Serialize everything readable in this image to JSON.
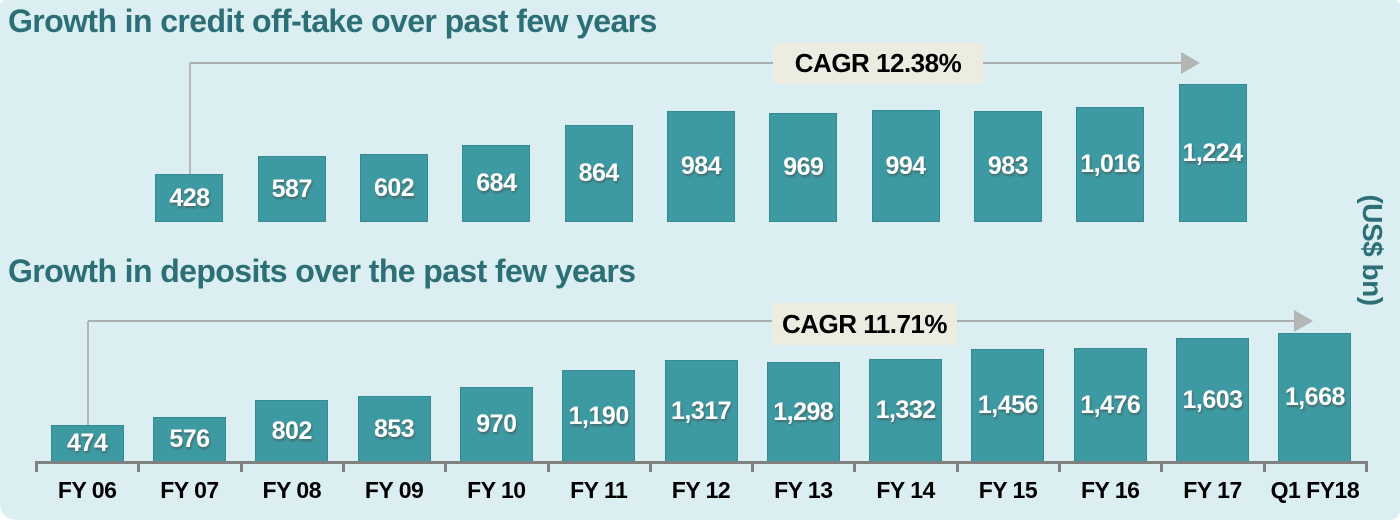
{
  "unit_label": "(US$ bn)",
  "colors": {
    "background": "#dbeef1",
    "bar": "#3e9aa2",
    "heading": "#2c6f77",
    "cagr_box_bg": "#ecede0",
    "annotation_line": "#aab0ae",
    "axis": "#7e817f",
    "bar_value_text": "#ffffff",
    "axis_label_text": "#000000"
  },
  "x_axis": {
    "categories": [
      "FY 06",
      "FY 07",
      "FY 08",
      "FY 09",
      "FY 10",
      "FY 11",
      "FY 12",
      "FY 13",
      "FY 14",
      "FY 15",
      "FY 16",
      "FY 17",
      "Q1 FY18"
    ]
  },
  "chart_data": [
    {
      "type": "bar",
      "title": "Growth in credit off-take over past few years",
      "cagr_label": "CAGR 12.38%",
      "unit": "US$ bn",
      "categories": [
        "FY 07",
        "FY 08",
        "FY 09",
        "FY 10",
        "FY 11",
        "FY 12",
        "FY 13",
        "FY 14",
        "FY 15",
        "FY 16",
        "FY 17"
      ],
      "values": [
        428,
        587,
        602,
        684,
        864,
        984,
        969,
        994,
        983,
        1016,
        1224
      ],
      "start_column": 1,
      "legend": "none",
      "grid": "off"
    },
    {
      "type": "bar",
      "title": "Growth in deposits over the past few years",
      "cagr_label": "CAGR 11.71%",
      "unit": "US$ bn",
      "categories": [
        "FY 06",
        "FY 07",
        "FY 08",
        "FY 09",
        "FY 10",
        "FY 11",
        "FY 12",
        "FY 13",
        "FY 14",
        "FY 15",
        "FY 16",
        "FY 17",
        "Q1 FY18"
      ],
      "values": [
        474,
        576,
        802,
        853,
        970,
        1190,
        1317,
        1298,
        1332,
        1456,
        1476,
        1603,
        1668
      ],
      "start_column": 0,
      "legend": "none",
      "grid": "off"
    }
  ]
}
